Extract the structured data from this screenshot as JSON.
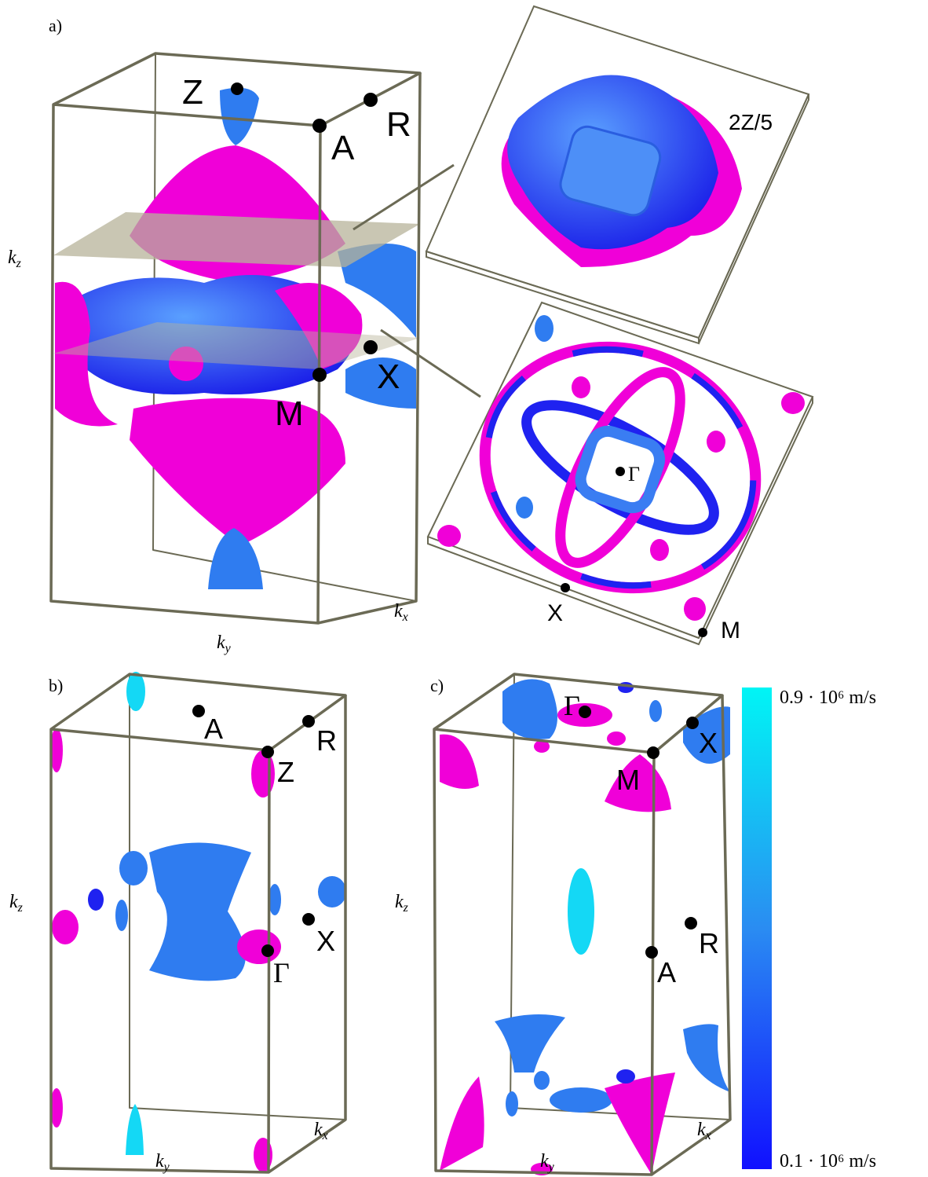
{
  "panel_a": {
    "label": "a)",
    "axes": {
      "x": {
        "symbol": "k",
        "sub": "x"
      },
      "y": {
        "symbol": "k",
        "sub": "y"
      },
      "z": {
        "symbol": "k",
        "sub": "z"
      }
    },
    "points": [
      "Z",
      "A",
      "R",
      "X",
      "M"
    ],
    "inset_top": {
      "label": "2Z/5"
    },
    "inset_bottom": {
      "points": [
        "Γ",
        "X",
        "M"
      ]
    }
  },
  "panel_b": {
    "label": "b)",
    "axes": {
      "x": {
        "symbol": "k",
        "sub": "x"
      },
      "y": {
        "symbol": "k",
        "sub": "y"
      },
      "z": {
        "symbol": "k",
        "sub": "z"
      }
    },
    "points": [
      "A",
      "R",
      "Z",
      "X",
      "Γ"
    ]
  },
  "panel_c": {
    "label": "c)",
    "axes": {
      "x": {
        "symbol": "k",
        "sub": "x"
      },
      "y": {
        "symbol": "k",
        "sub": "y"
      },
      "z": {
        "symbol": "k",
        "sub": "z"
      }
    },
    "points": [
      "Γ",
      "X",
      "M",
      "A",
      "R"
    ]
  },
  "colorbar": {
    "top_label": "0.9 · 10⁶ m/s",
    "bottom_label": "0.1 · 10⁶ m/s"
  }
}
